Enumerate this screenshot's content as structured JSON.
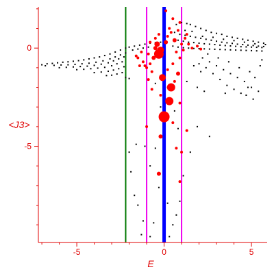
{
  "chart_data": {
    "type": "scatter",
    "title": "",
    "xlabel": "E",
    "ylabel": "<J3>",
    "xlim": [
      -7.2,
      5.9
    ],
    "ylim": [
      -9.9,
      2.1
    ],
    "grid": false,
    "xticks": [
      -5,
      0,
      5
    ],
    "yticks": [
      0,
      -5
    ],
    "colors": {
      "axis": "#e00000",
      "black_series": "#000000",
      "red_series": "#ff0000",
      "line_green": "#007700",
      "line_magenta": "#ee00ee",
      "line_blue": "#0000ff"
    },
    "vertical_lines": [
      {
        "x": -2.2,
        "color": "#007700",
        "width": 2
      },
      {
        "x": -1.0,
        "color": "#ee00ee",
        "width": 2
      },
      {
        "x": 0.0,
        "color": "#0000ff",
        "width": 5
      },
      {
        "x": 1.0,
        "color": "#ee00ee",
        "width": 2
      }
    ],
    "black_points": [
      [
        -7.0,
        -0.85
      ],
      [
        -6.7,
        -0.8
      ],
      [
        -6.4,
        -0.78
      ],
      [
        -6.1,
        -0.75
      ],
      [
        -5.8,
        -0.72
      ],
      [
        -5.5,
        -0.7
      ],
      [
        -5.2,
        -0.67
      ],
      [
        -4.9,
        -0.64
      ],
      [
        -4.6,
        -0.6
      ],
      [
        -4.3,
        -0.55
      ],
      [
        -4.0,
        -0.5
      ],
      [
        -3.7,
        -0.45
      ],
      [
        -3.4,
        -0.38
      ],
      [
        -3.1,
        -0.3
      ],
      [
        -2.8,
        -0.2
      ],
      [
        -2.5,
        -0.1
      ],
      [
        -2.2,
        0.0
      ],
      [
        -6.8,
        -0.9
      ],
      [
        -6.3,
        -0.88
      ],
      [
        -5.9,
        -0.86
      ],
      [
        -5.5,
        -0.85
      ],
      [
        -5.1,
        -0.83
      ],
      [
        -4.7,
        -0.8
      ],
      [
        -4.3,
        -0.77
      ],
      [
        -3.9,
        -0.72
      ],
      [
        -3.5,
        -0.65
      ],
      [
        -3.1,
        -0.55
      ],
      [
        -2.8,
        -0.45
      ],
      [
        -2.5,
        -0.35
      ],
      [
        -2.2,
        -0.25
      ],
      [
        -6.0,
        -1.0
      ],
      [
        -5.6,
        -0.98
      ],
      [
        -5.2,
        -0.96
      ],
      [
        -4.8,
        -0.94
      ],
      [
        -4.4,
        -0.92
      ],
      [
        -4.0,
        -0.88
      ],
      [
        -3.6,
        -0.82
      ],
      [
        -3.2,
        -0.75
      ],
      [
        -2.9,
        -0.65
      ],
      [
        -2.6,
        -0.55
      ],
      [
        -2.3,
        -0.45
      ],
      [
        -5.0,
        -1.1
      ],
      [
        -4.6,
        -1.08
      ],
      [
        -4.2,
        -1.05
      ],
      [
        -3.8,
        -1.02
      ],
      [
        -3.4,
        -0.98
      ],
      [
        -3.0,
        -0.9
      ],
      [
        -2.7,
        -0.8
      ],
      [
        -2.4,
        -0.7
      ],
      [
        -4.0,
        -1.25
      ],
      [
        -3.6,
        -1.22
      ],
      [
        -3.2,
        -1.18
      ],
      [
        -2.9,
        -1.12
      ],
      [
        -2.6,
        -1.05
      ],
      [
        -2.3,
        -0.95
      ],
      [
        -3.3,
        -1.4
      ],
      [
        -3.0,
        -1.38
      ],
      [
        -2.7,
        -1.32
      ],
      [
        -2.4,
        -1.25
      ],
      [
        -2.2,
        -1.5
      ],
      [
        -2.0,
        -1.55
      ],
      [
        -2.0,
        0.05
      ],
      [
        -1.7,
        0.1
      ],
      [
        -1.4,
        0.15
      ],
      [
        -1.1,
        0.2
      ],
      [
        -0.8,
        0.25
      ],
      [
        -0.5,
        0.28
      ],
      [
        -0.2,
        0.3
      ],
      [
        -1.8,
        -0.1
      ],
      [
        -1.5,
        -0.05
      ],
      [
        -1.2,
        0.0
      ],
      [
        -0.9,
        0.05
      ],
      [
        0.6,
        0.8
      ],
      [
        0.9,
        0.7
      ],
      [
        1.2,
        0.65
      ],
      [
        1.5,
        0.6
      ],
      [
        1.8,
        0.55
      ],
      [
        2.1,
        0.5
      ],
      [
        2.4,
        0.45
      ],
      [
        2.7,
        0.4
      ],
      [
        3.0,
        0.35
      ],
      [
        3.3,
        0.3
      ],
      [
        3.6,
        0.27
      ],
      [
        3.9,
        0.24
      ],
      [
        4.2,
        0.2
      ],
      [
        4.5,
        0.18
      ],
      [
        4.8,
        0.15
      ],
      [
        5.1,
        0.13
      ],
      [
        5.4,
        0.1
      ],
      [
        5.7,
        0.08
      ],
      [
        0.8,
        0.4
      ],
      [
        1.1,
        0.35
      ],
      [
        1.4,
        0.3
      ],
      [
        1.7,
        0.28
      ],
      [
        2.0,
        0.25
      ],
      [
        2.3,
        0.22
      ],
      [
        2.6,
        0.2
      ],
      [
        2.9,
        0.18
      ],
      [
        3.2,
        0.15
      ],
      [
        3.5,
        0.13
      ],
      [
        3.8,
        0.11
      ],
      [
        4.1,
        0.09
      ],
      [
        4.4,
        0.07
      ],
      [
        4.7,
        0.06
      ],
      [
        5.0,
        0.05
      ],
      [
        5.3,
        0.04
      ],
      [
        5.6,
        0.03
      ],
      [
        0.5,
        0.1
      ],
      [
        0.8,
        0.05
      ],
      [
        1.1,
        0.02
      ],
      [
        1.4,
        0.0
      ],
      [
        1.7,
        -0.02
      ],
      [
        2.0,
        -0.03
      ],
      [
        2.3,
        -0.04
      ],
      [
        2.6,
        -0.05
      ],
      [
        2.9,
        -0.06
      ],
      [
        3.2,
        -0.07
      ],
      [
        3.5,
        -0.08
      ],
      [
        3.8,
        -0.09
      ],
      [
        4.1,
        -0.1
      ],
      [
        4.4,
        -0.11
      ],
      [
        4.7,
        -0.12
      ],
      [
        5.0,
        -0.13
      ],
      [
        5.3,
        -0.14
      ],
      [
        5.6,
        -0.15
      ],
      [
        1.5,
        1.2
      ],
      [
        1.8,
        1.1
      ],
      [
        2.1,
        1.0
      ],
      [
        2.4,
        0.9
      ],
      [
        2.7,
        0.8
      ],
      [
        3.0,
        0.75
      ],
      [
        3.3,
        0.7
      ],
      [
        3.6,
        0.6
      ],
      [
        3.9,
        0.55
      ],
      [
        4.2,
        0.5
      ],
      [
        4.5,
        0.45
      ],
      [
        4.8,
        0.4
      ],
      [
        5.1,
        0.35
      ],
      [
        5.4,
        0.3
      ],
      [
        5.7,
        0.25
      ],
      [
        1.0,
        1.3
      ],
      [
        1.3,
        1.25
      ],
      [
        0.5,
        1.5
      ],
      [
        0.7,
        1.2
      ],
      [
        1.2,
        0.9
      ],
      [
        1.6,
        0.85
      ],
      [
        2.2,
        0.6
      ],
      [
        2.8,
        0.55
      ],
      [
        3.4,
        0.45
      ],
      [
        4.0,
        0.38
      ],
      [
        4.6,
        0.3
      ],
      [
        5.2,
        0.22
      ],
      [
        5.8,
        0.18
      ],
      [
        2.2,
        -0.5
      ],
      [
        2.6,
        -0.7
      ],
      [
        3.0,
        -0.9
      ],
      [
        3.4,
        -1.1
      ],
      [
        3.8,
        -1.3
      ],
      [
        4.2,
        -1.5
      ],
      [
        4.6,
        -1.7
      ],
      [
        5.0,
        -2.0
      ],
      [
        5.4,
        -2.2
      ],
      [
        2.0,
        -0.8
      ],
      [
        2.4,
        -1.0
      ],
      [
        2.8,
        -1.3
      ],
      [
        3.2,
        -1.6
      ],
      [
        3.6,
        -1.9
      ],
      [
        4.0,
        -2.1
      ],
      [
        4.4,
        -2.3
      ],
      [
        4.8,
        -2.0
      ],
      [
        5.2,
        -1.5
      ],
      [
        5.5,
        -0.9
      ],
      [
        2.5,
        -0.3
      ],
      [
        3.1,
        -0.5
      ],
      [
        3.7,
        -0.7
      ],
      [
        4.3,
        -1.0
      ],
      [
        4.9,
        -1.2
      ],
      [
        5.6,
        -0.6
      ],
      [
        1.7,
        -0.9
      ],
      [
        2.1,
        -1.2
      ],
      [
        1.9,
        -2.0
      ],
      [
        2.3,
        -2.2
      ],
      [
        3.5,
        -2.3
      ],
      [
        4.7,
        -2.4
      ],
      [
        5.1,
        -2.6
      ],
      [
        1.3,
        -1.7
      ],
      [
        1.9,
        -4.0
      ],
      [
        2.6,
        -4.5
      ],
      [
        1.5,
        -5.3
      ],
      [
        -2.0,
        -5.3
      ],
      [
        -1.9,
        -6.3
      ],
      [
        -1.7,
        -7.5
      ],
      [
        -1.5,
        -8.0
      ],
      [
        -1.2,
        -8.8
      ],
      [
        -1.3,
        -9.5
      ],
      [
        -0.8,
        -9.6
      ],
      [
        -0.6,
        -8.9
      ],
      [
        -1.6,
        -4.9
      ],
      [
        -1.1,
        -5.0
      ],
      [
        -0.8,
        -6.0
      ],
      [
        -0.5,
        -5.1
      ],
      [
        -0.3,
        -7.1
      ],
      [
        0.2,
        -7.9
      ],
      [
        0.5,
        -9.0
      ],
      [
        0.3,
        -9.6
      ],
      [
        0.7,
        -8.5
      ],
      [
        0.9,
        -7.8
      ],
      [
        1.1,
        -6.5
      ],
      [
        -0.2,
        -3.0
      ],
      [
        0.2,
        -2.0
      ],
      [
        -0.5,
        -1.8
      ],
      [
        0.6,
        -3.2
      ],
      [
        0.8,
        -4.1
      ]
    ],
    "red_points": [
      [
        -0.3,
        -0.3,
        7
      ],
      [
        -0.2,
        -0.1,
        5
      ],
      [
        -0.4,
        0.2,
        4
      ],
      [
        0.1,
        0.3,
        3
      ],
      [
        -0.1,
        -1.5,
        5
      ],
      [
        0.4,
        -2.0,
        6
      ],
      [
        0.3,
        -2.7,
        6
      ],
      [
        0.0,
        -3.5,
        8
      ],
      [
        -0.2,
        -4.5,
        3
      ],
      [
        -0.3,
        -6.4,
        3
      ],
      [
        -0.6,
        -0.5,
        3
      ],
      [
        -0.8,
        -0.8,
        2
      ],
      [
        -1.0,
        -1.0,
        2
      ],
      [
        -1.2,
        -0.7,
        2
      ],
      [
        -0.9,
        -0.3,
        2
      ],
      [
        -0.5,
        0.0,
        3
      ],
      [
        -1.3,
        -0.2,
        2
      ],
      [
        -1.5,
        -0.5,
        2
      ],
      [
        -1.1,
        -0.9,
        2
      ],
      [
        -0.7,
        -1.2,
        2
      ],
      [
        0.6,
        0.4,
        3
      ],
      [
        0.8,
        0.9,
        2
      ],
      [
        0.5,
        1.5,
        2
      ],
      [
        0.9,
        1.3,
        2
      ],
      [
        0.7,
        -0.2,
        2
      ],
      [
        0.9,
        -0.5,
        2
      ],
      [
        0.5,
        -0.8,
        2
      ],
      [
        0.8,
        -1.3,
        3
      ],
      [
        0.6,
        -1.7,
        2
      ],
      [
        0.2,
        -1.1,
        2
      ],
      [
        1.2,
        0.5,
        2
      ],
      [
        1.4,
        0.2,
        2
      ],
      [
        1.6,
        0.0,
        2
      ],
      [
        1.9,
        0.1,
        2
      ],
      [
        2.1,
        -0.05,
        2
      ],
      [
        1.1,
        -0.1,
        2
      ],
      [
        1.3,
        0.7,
        2
      ],
      [
        0.4,
        0.8,
        2
      ],
      [
        0.2,
        0.6,
        2
      ],
      [
        0.1,
        1.9,
        2
      ],
      [
        -0.7,
        -2.1,
        2
      ],
      [
        -0.2,
        -2.4,
        2
      ],
      [
        0.9,
        -2.8,
        2
      ],
      [
        1.3,
        -4.2,
        2
      ],
      [
        -0.1,
        -3.3,
        2
      ],
      [
        0.5,
        -3.8,
        2
      ],
      [
        0.7,
        -5.1,
        2
      ],
      [
        1.0,
        -5.3,
        2
      ],
      [
        -1.0,
        -4.0,
        2
      ],
      [
        0.9,
        -6.8,
        2
      ],
      [
        -0.5,
        0.5,
        2
      ],
      [
        -0.8,
        0.3,
        2
      ],
      [
        -0.3,
        0.7,
        2
      ],
      [
        0.3,
        1.0,
        2
      ],
      [
        1.0,
        0.2,
        2
      ],
      [
        -1.4,
        -0.9,
        2
      ],
      [
        -1.6,
        -0.4,
        2
      ],
      [
        -0.9,
        -1.6,
        2
      ]
    ]
  }
}
